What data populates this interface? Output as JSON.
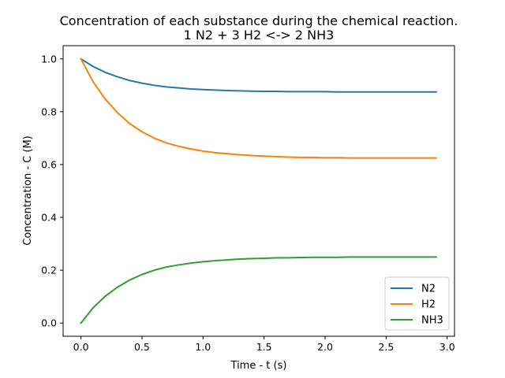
{
  "chart_data": {
    "type": "line",
    "title_line1": "Concentration of each substance during the chemical reaction.",
    "title_line2": "1 N2 + 3 H2 <-> 2 NH3",
    "xlabel": "Time - t (s)",
    "ylabel": "Concentration - C (M)",
    "xlim": [
      -0.146,
      3.06
    ],
    "ylim": [
      -0.05,
      1.05
    ],
    "xticks": [
      0.0,
      0.5,
      1.0,
      1.5,
      2.0,
      2.5,
      3.0
    ],
    "xtick_labels": [
      "0.0",
      "0.5",
      "1.0",
      "1.5",
      "2.0",
      "2.5",
      "3.0"
    ],
    "yticks": [
      0.0,
      0.2,
      0.4,
      0.6,
      0.8,
      1.0
    ],
    "ytick_labels": [
      "0.0",
      "0.2",
      "0.4",
      "0.6",
      "0.8",
      "1.0"
    ],
    "grid": false,
    "legend_position": "lower-right",
    "x": [
      0.0,
      0.1,
      0.2,
      0.3,
      0.4,
      0.5,
      0.6,
      0.7,
      0.8,
      0.9,
      1.0,
      1.1,
      1.2,
      1.3,
      1.4,
      1.5,
      1.6,
      1.7,
      1.8,
      1.9,
      2.0,
      2.1,
      2.2,
      2.3,
      2.4,
      2.5,
      2.6,
      2.7,
      2.8,
      2.91
    ],
    "series": [
      {
        "name": "N2",
        "color": "#1f77b4",
        "values": [
          1.0,
          0.971,
          0.949,
          0.932,
          0.918,
          0.908,
          0.9,
          0.894,
          0.89,
          0.886,
          0.884,
          0.882,
          0.88,
          0.879,
          0.878,
          0.877,
          0.877,
          0.876,
          0.876,
          0.876,
          0.876,
          0.875,
          0.875,
          0.875,
          0.875,
          0.875,
          0.875,
          0.875,
          0.875,
          0.875
        ]
      },
      {
        "name": "H2",
        "color": "#ff7f0e",
        "values": [
          1.0,
          0.913,
          0.847,
          0.796,
          0.755,
          0.724,
          0.7,
          0.682,
          0.669,
          0.659,
          0.651,
          0.645,
          0.641,
          0.637,
          0.634,
          0.632,
          0.63,
          0.628,
          0.627,
          0.627,
          0.626,
          0.626,
          0.625,
          0.625,
          0.625,
          0.625,
          0.625,
          0.625,
          0.625,
          0.625
        ]
      },
      {
        "name": "NH3",
        "color": "#2ca02c",
        "values": [
          0.0,
          0.058,
          0.102,
          0.136,
          0.163,
          0.184,
          0.2,
          0.212,
          0.22,
          0.227,
          0.232,
          0.236,
          0.239,
          0.242,
          0.244,
          0.245,
          0.247,
          0.247,
          0.248,
          0.249,
          0.249,
          0.249,
          0.25,
          0.25,
          0.25,
          0.25,
          0.25,
          0.25,
          0.25,
          0.25
        ]
      }
    ]
  }
}
